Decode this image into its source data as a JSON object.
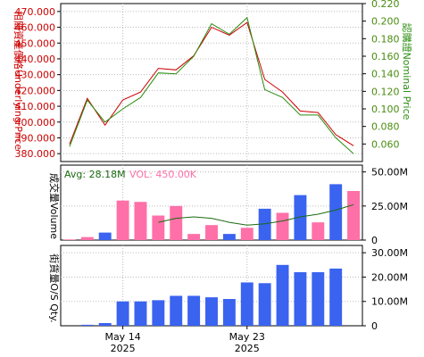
{
  "chart_data": [
    {
      "type": "line",
      "ylabel_left": "相關資產價格Underlying Price",
      "ylabel_right": "認購證Nominal Price",
      "ylim_left": [
        375,
        475
      ],
      "yticks_left": [
        "380.000",
        "390.000",
        "400.000",
        "410.000",
        "420.000",
        "430.000",
        "440.000",
        "450.000",
        "460.000",
        "470.000"
      ],
      "ylim_right": [
        0.04,
        0.22
      ],
      "yticks_right": [
        "0.060",
        "0.080",
        "0.100",
        "0.120",
        "0.140",
        "0.160",
        "0.180",
        "0.200",
        "0.220"
      ],
      "series": [
        {
          "key": "underlying",
          "axis": "left",
          "color": "#cc0000",
          "values": [
            386,
            415,
            398,
            414,
            419,
            434,
            433,
            442,
            460,
            455,
            463,
            427,
            419,
            407,
            406,
            392,
            385
          ]
        },
        {
          "key": "warrant",
          "axis": "right",
          "color": "#2a8c10",
          "values": [
            0.057,
            0.11,
            0.085,
            0.1,
            0.113,
            0.141,
            0.14,
            0.16,
            0.197,
            0.185,
            0.204,
            0.122,
            0.113,
            0.093,
            0.093,
            0.067,
            0.049
          ]
        }
      ]
    },
    {
      "type": "bar",
      "ylabel": "成交量Volume",
      "avg_label": "Avg: 28.18M",
      "vol_label": "VOL: 450.00K",
      "avg_color": "#1a6b10",
      "vol_color": "#ff6fa8",
      "ylim": [
        0,
        55
      ],
      "yticks": [
        "0",
        "25.00M",
        "50.00M"
      ],
      "values": [
        0.45,
        2.2,
        5.5,
        29,
        28,
        18,
        25,
        4.5,
        11,
        4.5,
        9,
        23,
        20,
        33,
        13,
        41,
        36
      ],
      "colors": [
        "#ff6fa8",
        "#ff6fa8",
        "#3a63f0",
        "#ff6fa8",
        "#ff6fa8",
        "#ff6fa8",
        "#ff6fa8",
        "#ff6fa8",
        "#ff6fa8",
        "#3a63f0",
        "#ff6fa8",
        "#3a63f0",
        "#ff6fa8",
        "#3a63f0",
        "#ff6fa8",
        "#3a63f0",
        "#ff6fa8"
      ],
      "avg_line": [
        null,
        null,
        null,
        null,
        null,
        13,
        16,
        17,
        16,
        13,
        11,
        12,
        14,
        17,
        19,
        22,
        26
      ]
    },
    {
      "type": "bar",
      "ylabel": "街貨量O/S Qty.",
      "ylim": [
        0,
        33
      ],
      "yticks": [
        "0",
        "10.00M",
        "20.00M",
        "30.00M"
      ],
      "values": [
        0,
        0.4,
        1.1,
        10,
        10,
        10.5,
        12.3,
        12.3,
        11.7,
        11,
        17.8,
        17.5,
        25,
        22,
        22,
        23.5,
        0
      ],
      "color": "#3a63f0"
    }
  ],
  "x_axis": {
    "ticks": [
      {
        "index": 3,
        "line1": "May 14",
        "line2": "2025"
      },
      {
        "index": 10,
        "line1": "May 23",
        "line2": "2025"
      }
    ]
  }
}
